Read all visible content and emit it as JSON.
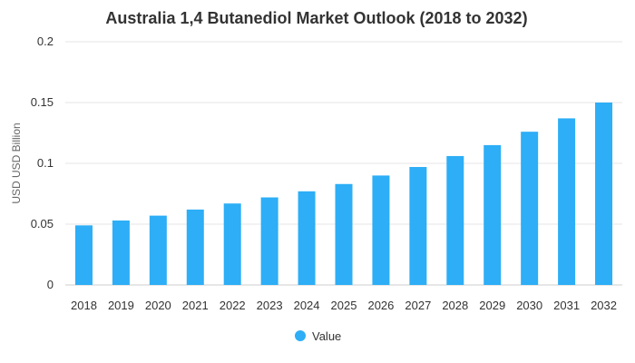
{
  "chart_data": {
    "type": "bar",
    "title": "Australia 1,4 Butanediol Market Outlook (2018 to 2032)",
    "xlabel": "",
    "ylabel": "USD USD Billion",
    "ylim": [
      0,
      0.2
    ],
    "yticks": [
      0,
      0.05,
      0.1,
      0.15,
      0.2
    ],
    "ytick_labels": [
      "0",
      "0.05",
      "0.1",
      "0.15",
      "0.2"
    ],
    "grid": true,
    "legend_position": "bottom-center",
    "bar_color": "#2DAEF6",
    "categories": [
      "2018",
      "2019",
      "2020",
      "2021",
      "2022",
      "2023",
      "2024",
      "2025",
      "2026",
      "2027",
      "2028",
      "2029",
      "2030",
      "2031",
      "2032"
    ],
    "series": [
      {
        "name": "Value",
        "values": [
          0.049,
          0.053,
          0.057,
          0.062,
          0.067,
          0.072,
          0.077,
          0.083,
          0.09,
          0.097,
          0.106,
          0.115,
          0.126,
          0.137,
          0.15
        ]
      }
    ]
  }
}
